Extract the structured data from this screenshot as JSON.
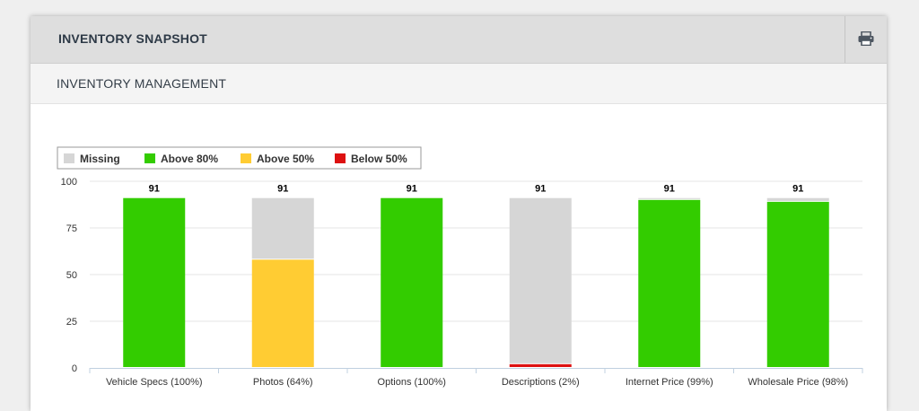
{
  "header": {
    "title": "INVENTORY SNAPSHOT",
    "print_icon": "print-icon"
  },
  "section": {
    "title": "INVENTORY MANAGEMENT"
  },
  "colors": {
    "missing": "#d6d6d6",
    "above_80": "#33cc00",
    "above_50": "#ffcc33",
    "below_50": "#dd1111",
    "gridline": "#e6e6e6",
    "axis": "#c0d0e0"
  },
  "chart_data": {
    "type": "bar",
    "stacked": true,
    "title": "",
    "xlabel": "",
    "ylabel": "",
    "ylim": [
      0,
      100
    ],
    "yticks": [
      "0",
      "25",
      "50",
      "75",
      "100"
    ],
    "grid": true,
    "legend_position": "top-left",
    "legend": [
      {
        "key": "missing",
        "label": "Missing"
      },
      {
        "key": "above_80",
        "label": "Above 80%"
      },
      {
        "key": "above_50",
        "label": "Above 50%"
      },
      {
        "key": "below_50",
        "label": "Below 50%"
      }
    ],
    "categories": [
      "Vehicle Specs (100%)",
      "Photos (64%)",
      "Options (100%)",
      "Descriptions (2%)",
      "Internet Price (99%)",
      "Wholesale Price (98%)"
    ],
    "totals": [
      "91",
      "91",
      "91",
      "91",
      "91",
      "91"
    ],
    "bars": [
      [
        {
          "key": "above_80",
          "value": 91
        }
      ],
      [
        {
          "key": "above_50",
          "value": 58
        },
        {
          "key": "missing",
          "value": 33
        }
      ],
      [
        {
          "key": "above_80",
          "value": 91
        }
      ],
      [
        {
          "key": "below_50",
          "value": 2
        },
        {
          "key": "missing",
          "value": 89
        }
      ],
      [
        {
          "key": "above_80",
          "value": 90
        },
        {
          "key": "missing",
          "value": 1
        }
      ],
      [
        {
          "key": "above_80",
          "value": 89
        },
        {
          "key": "missing",
          "value": 2
        }
      ]
    ]
  }
}
